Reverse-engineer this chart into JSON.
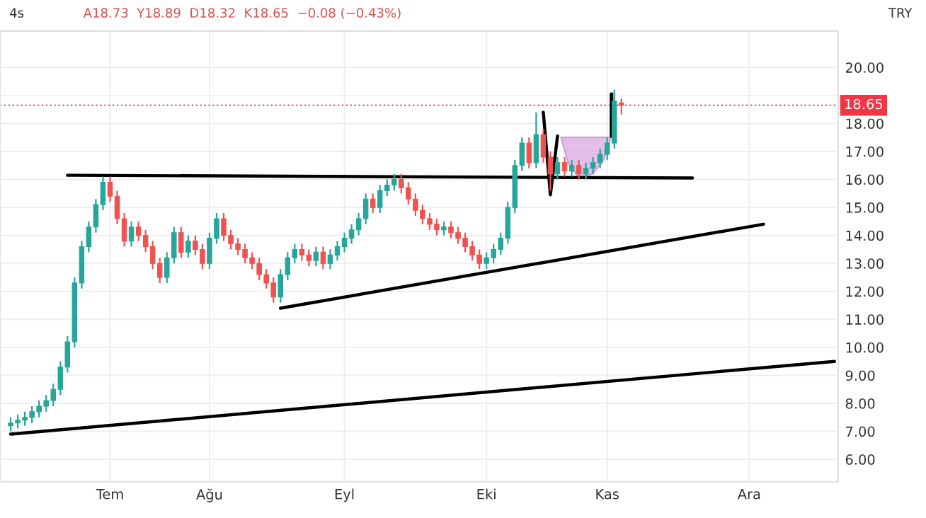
{
  "chart_data": {
    "type": "candlestick",
    "categories": [
      null,
      null,
      null,
      null,
      null,
      null,
      null,
      null,
      null,
      null,
      null,
      null,
      null,
      null,
      "Tem",
      null,
      null,
      null,
      null,
      null,
      null,
      null,
      null,
      null,
      null,
      null,
      null,
      null,
      "Ağu",
      null,
      null,
      null,
      null,
      null,
      null,
      null,
      null,
      null,
      null,
      null,
      null,
      null,
      null,
      null,
      null,
      null,
      null,
      "Eyl",
      null,
      null,
      null,
      null,
      null,
      null,
      null,
      null,
      null,
      null,
      null,
      null,
      null,
      null,
      null,
      null,
      null,
      null,
      null,
      "Eki",
      null,
      null,
      null,
      null,
      null,
      null,
      null,
      null,
      null,
      null,
      null,
      null,
      null,
      null,
      null,
      null,
      "Kas",
      null,
      null,
      null,
      null,
      null,
      null,
      null,
      null,
      null,
      null,
      null,
      null,
      null,
      null,
      null,
      null,
      null,
      null,
      null,
      "Ara",
      null,
      null,
      null,
      null,
      null,
      null,
      null,
      null,
      null,
      null,
      null,
      null
    ],
    "ohlc": [
      [
        7.2,
        7.5,
        7.0,
        7.3
      ],
      [
        7.3,
        7.6,
        7.1,
        7.4
      ],
      [
        7.4,
        7.7,
        7.2,
        7.5
      ],
      [
        7.5,
        7.9,
        7.3,
        7.7
      ],
      [
        7.7,
        8.1,
        7.5,
        7.9
      ],
      [
        7.9,
        8.3,
        7.7,
        8.1
      ],
      [
        8.1,
        8.7,
        7.9,
        8.5
      ],
      [
        8.5,
        9.5,
        8.3,
        9.3
      ],
      [
        9.3,
        10.4,
        9.1,
        10.2
      ],
      [
        10.2,
        12.5,
        10.0,
        12.3
      ],
      [
        12.3,
        13.8,
        12.1,
        13.6
      ],
      [
        13.6,
        14.5,
        13.4,
        14.3
      ],
      [
        14.3,
        15.3,
        14.1,
        15.1
      ],
      [
        15.1,
        16.1,
        14.9,
        15.9
      ],
      [
        15.9,
        16.1,
        15.2,
        15.4
      ],
      [
        15.4,
        15.6,
        14.4,
        14.6
      ],
      [
        14.6,
        14.8,
        13.6,
        13.8
      ],
      [
        13.8,
        14.5,
        13.6,
        14.3
      ],
      [
        14.3,
        14.5,
        13.8,
        14.0
      ],
      [
        14.0,
        14.2,
        13.4,
        13.6
      ],
      [
        13.6,
        13.8,
        12.8,
        13.0
      ],
      [
        13.0,
        13.2,
        12.3,
        12.5
      ],
      [
        12.5,
        13.4,
        12.3,
        13.2
      ],
      [
        13.2,
        14.3,
        13.0,
        14.1
      ],
      [
        14.1,
        14.3,
        13.2,
        13.4
      ],
      [
        13.4,
        14.0,
        13.2,
        13.8
      ],
      [
        13.8,
        14.0,
        13.3,
        13.5
      ],
      [
        13.5,
        13.7,
        12.8,
        13.0
      ],
      [
        13.0,
        14.1,
        12.8,
        13.9
      ],
      [
        13.9,
        14.8,
        13.7,
        14.6
      ],
      [
        14.6,
        14.8,
        13.8,
        14.0
      ],
      [
        14.0,
        14.2,
        13.5,
        13.7
      ],
      [
        13.7,
        13.9,
        13.3,
        13.5
      ],
      [
        13.5,
        13.7,
        13.0,
        13.2
      ],
      [
        13.2,
        13.4,
        12.8,
        13.0
      ],
      [
        13.0,
        13.2,
        12.4,
        12.6
      ],
      [
        12.6,
        12.8,
        12.1,
        12.3
      ],
      [
        12.3,
        12.5,
        11.6,
        11.8
      ],
      [
        11.8,
        12.8,
        11.6,
        12.6
      ],
      [
        12.6,
        13.4,
        12.4,
        13.2
      ],
      [
        13.2,
        13.7,
        13.0,
        13.5
      ],
      [
        13.5,
        13.7,
        13.1,
        13.3
      ],
      [
        13.3,
        13.5,
        12.9,
        13.1
      ],
      [
        13.1,
        13.6,
        12.9,
        13.4
      ],
      [
        13.4,
        13.6,
        12.8,
        13.0
      ],
      [
        13.0,
        13.5,
        12.8,
        13.3
      ],
      [
        13.3,
        13.8,
        13.1,
        13.6
      ],
      [
        13.6,
        14.1,
        13.4,
        13.9
      ],
      [
        13.9,
        14.4,
        13.7,
        14.2
      ],
      [
        14.2,
        14.8,
        14.0,
        14.6
      ],
      [
        14.6,
        15.5,
        14.4,
        15.3
      ],
      [
        15.3,
        15.5,
        14.8,
        15.0
      ],
      [
        15.0,
        15.8,
        14.8,
        15.6
      ],
      [
        15.6,
        16.0,
        15.4,
        15.8
      ],
      [
        15.8,
        16.2,
        15.6,
        16.0
      ],
      [
        16.0,
        16.2,
        15.5,
        15.7
      ],
      [
        15.7,
        15.9,
        15.1,
        15.3
      ],
      [
        15.3,
        15.5,
        14.7,
        14.9
      ],
      [
        14.9,
        15.1,
        14.4,
        14.6
      ],
      [
        14.6,
        14.8,
        14.2,
        14.4
      ],
      [
        14.4,
        14.6,
        14.0,
        14.2
      ],
      [
        14.2,
        14.5,
        14.0,
        14.3
      ],
      [
        14.3,
        14.5,
        13.9,
        14.1
      ],
      [
        14.1,
        14.3,
        13.7,
        13.9
      ],
      [
        13.9,
        14.1,
        13.4,
        13.6
      ],
      [
        13.6,
        13.8,
        13.1,
        13.3
      ],
      [
        13.3,
        13.5,
        12.8,
        13.0
      ],
      [
        13.0,
        13.4,
        12.8,
        13.2
      ],
      [
        13.2,
        13.7,
        13.0,
        13.5
      ],
      [
        13.5,
        14.1,
        13.3,
        13.9
      ],
      [
        13.9,
        15.2,
        13.7,
        15.0
      ],
      [
        15.0,
        16.7,
        14.8,
        16.5
      ],
      [
        16.5,
        17.5,
        16.3,
        17.3
      ],
      [
        17.3,
        17.5,
        16.4,
        16.6
      ],
      [
        16.6,
        18.4,
        16.4,
        17.6
      ],
      [
        17.6,
        17.8,
        16.6,
        16.8
      ],
      [
        16.8,
        17.0,
        15.6,
        16.2
      ],
      [
        16.2,
        16.8,
        16.0,
        16.6
      ],
      [
        16.6,
        16.8,
        16.1,
        16.3
      ],
      [
        16.3,
        16.7,
        16.1,
        16.5
      ],
      [
        16.5,
        16.7,
        16.0,
        16.2
      ],
      [
        16.2,
        16.6,
        16.0,
        16.4
      ],
      [
        16.4,
        16.8,
        16.2,
        16.6
      ],
      [
        16.6,
        17.1,
        16.4,
        16.9
      ],
      [
        16.9,
        17.5,
        16.7,
        17.3
      ],
      [
        17.3,
        19.2,
        17.1,
        18.8
      ],
      [
        18.73,
        18.89,
        18.32,
        18.65
      ],
      null,
      null,
      null,
      null,
      null,
      null,
      null,
      null,
      null,
      null,
      null,
      null,
      null,
      null,
      null,
      null,
      null,
      null,
      null,
      null,
      null,
      null,
      null,
      null,
      null,
      null,
      null,
      null,
      null,
      null
    ],
    "series": [
      {
        "type": "line",
        "color": "#000000",
        "values": [
          6.9,
          null,
          null,
          null,
          null,
          null,
          null,
          null,
          null,
          null,
          null,
          null,
          null,
          null,
          null,
          null,
          null,
          null,
          null,
          null,
          null,
          null,
          null,
          null,
          null,
          null,
          null,
          null,
          null,
          null,
          null,
          null,
          null,
          null,
          null,
          null,
          null,
          null,
          null,
          null,
          null,
          null,
          null,
          null,
          null,
          null,
          null,
          null,
          null,
          null,
          null,
          null,
          null,
          null,
          null,
          null,
          null,
          null,
          null,
          null,
          null,
          null,
          null,
          null,
          null,
          null,
          null,
          null,
          null,
          null,
          null,
          null,
          null,
          null,
          null,
          null,
          null,
          null,
          null,
          null,
          null,
          null,
          null,
          null,
          null,
          null,
          null,
          null,
          null,
          null,
          null,
          null,
          null,
          null,
          null,
          null,
          null,
          null,
          null,
          null,
          null,
          null,
          null,
          null,
          null,
          null,
          null,
          null,
          null,
          null,
          null,
          null,
          null,
          null,
          null,
          null,
          9.5
        ]
      },
      {
        "type": "line",
        "color": "#000000",
        "values": [
          null,
          null,
          null,
          null,
          null,
          null,
          null,
          null,
          null,
          null,
          null,
          null,
          null,
          null,
          null,
          null,
          null,
          null,
          null,
          null,
          null,
          null,
          null,
          null,
          null,
          null,
          null,
          null,
          null,
          null,
          null,
          null,
          null,
          null,
          null,
          null,
          null,
          null,
          11.4,
          null,
          null,
          null,
          null,
          null,
          null,
          null,
          null,
          null,
          null,
          null,
          null,
          null,
          null,
          null,
          null,
          null,
          null,
          null,
          null,
          null,
          null,
          null,
          null,
          null,
          null,
          null,
          null,
          null,
          null,
          null,
          null,
          null,
          null,
          null,
          null,
          null,
          null,
          null,
          null,
          null,
          null,
          null,
          null,
          null,
          null,
          null,
          null,
          null,
          null,
          null,
          null,
          null,
          null,
          null,
          null,
          null,
          null,
          null,
          null,
          null,
          null,
          null,
          null,
          null,
          null,
          null,
          14.4,
          null,
          null,
          null,
          null,
          null,
          null,
          null,
          null,
          null,
          null
        ]
      },
      {
        "type": "line",
        "color": "#000000",
        "values": [
          null,
          null,
          null,
          null,
          null,
          null,
          null,
          null,
          16.15,
          null,
          null,
          null,
          null,
          null,
          null,
          null,
          null,
          null,
          null,
          null,
          null,
          null,
          null,
          null,
          null,
          null,
          null,
          null,
          null,
          null,
          null,
          null,
          null,
          null,
          null,
          null,
          null,
          null,
          null,
          null,
          null,
          null,
          null,
          null,
          null,
          null,
          null,
          null,
          null,
          null,
          null,
          null,
          null,
          null,
          null,
          null,
          null,
          null,
          null,
          null,
          null,
          null,
          null,
          null,
          null,
          null,
          null,
          null,
          null,
          null,
          null,
          null,
          null,
          null,
          null,
          null,
          null,
          null,
          null,
          null,
          null,
          null,
          null,
          null,
          null,
          null,
          null,
          null,
          null,
          null,
          null,
          null,
          null,
          null,
          null,
          null,
          16.05,
          null,
          null,
          null,
          null,
          null,
          null,
          null,
          null,
          null,
          null,
          null,
          null,
          null,
          null,
          null,
          null,
          null,
          null,
          null,
          null
        ]
      },
      {
        "type": "line",
        "color": "#000000",
        "values": [
          null,
          null,
          null,
          null,
          null,
          null,
          null,
          null,
          null,
          null,
          null,
          null,
          null,
          null,
          null,
          null,
          null,
          null,
          null,
          null,
          null,
          null,
          null,
          null,
          null,
          null,
          null,
          null,
          null,
          null,
          null,
          null,
          null,
          null,
          null,
          null,
          null,
          null,
          null,
          null,
          null,
          null,
          null,
          null,
          null,
          null,
          null,
          null,
          null,
          null,
          null,
          null,
          null,
          null,
          null,
          null,
          null,
          null,
          null,
          null,
          null,
          null,
          null,
          null,
          null,
          null,
          null,
          null,
          null,
          null,
          null,
          null,
          null,
          null,
          null,
          18.4,
          15.45,
          17.55,
          null,
          null,
          null,
          null,
          null,
          null,
          null,
          null,
          null,
          null,
          null,
          null,
          null,
          null,
          null,
          null,
          null,
          null,
          null,
          null,
          null,
          null,
          null,
          null,
          null,
          null,
          null,
          null,
          null,
          null,
          null,
          null,
          null,
          null,
          null,
          null,
          null,
          null,
          null
        ]
      }
    ],
    "ylim": [
      5.2,
      21.3
    ],
    "yticks": [
      {
        "value": 6,
        "label": "6.00"
      },
      {
        "value": 7,
        "label": "7.00"
      },
      {
        "value": 8,
        "label": "8.00"
      },
      {
        "value": 9,
        "label": "9.00"
      },
      {
        "value": 10,
        "label": "10.00"
      },
      {
        "value": 11,
        "label": "11.00"
      },
      {
        "value": 12,
        "label": "12.00"
      },
      {
        "value": 13,
        "label": "13.00"
      },
      {
        "value": 14,
        "label": "14.00"
      },
      {
        "value": 15,
        "label": "15.00"
      },
      {
        "value": 16,
        "label": "16.00"
      },
      {
        "value": 17,
        "label": "17.00"
      },
      {
        "value": 18,
        "label": "18.00"
      },
      {
        "value": 19,
        "label": null
      },
      {
        "value": 20,
        "label": "20.00"
      }
    ],
    "ref_lines": [
      {
        "axis": "y",
        "value": 18.65,
        "label": "18.65",
        "color": "#f23645",
        "line_style": "dotted"
      }
    ],
    "annotations": [
      "4s",
      "A18.73  Y18.89  D18.32  K18.65  −0.08 (−0.43%)",
      "TRY"
    ],
    "grid": true
  }
}
